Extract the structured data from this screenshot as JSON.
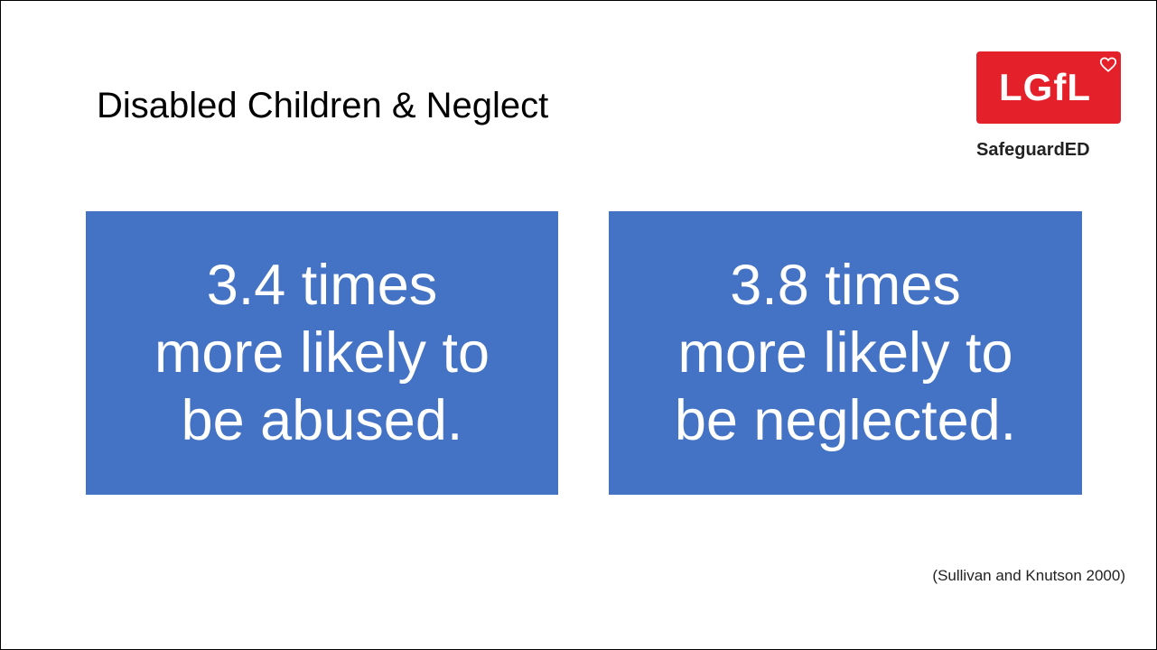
{
  "slide": {
    "title": "Disabled Children & Neglect",
    "logo": {
      "badge_text": "LGfL",
      "subtitle": "SafeguardED",
      "brand_color": "#e4212a"
    },
    "stats": [
      {
        "lines": [
          "3.4 times",
          "more likely to",
          "be abused."
        ]
      },
      {
        "lines": [
          "3.8 times",
          "more likely to",
          "be neglected."
        ]
      }
    ],
    "box_color": "#4472c4",
    "citation": "(Sullivan and Knutson 2000)"
  }
}
